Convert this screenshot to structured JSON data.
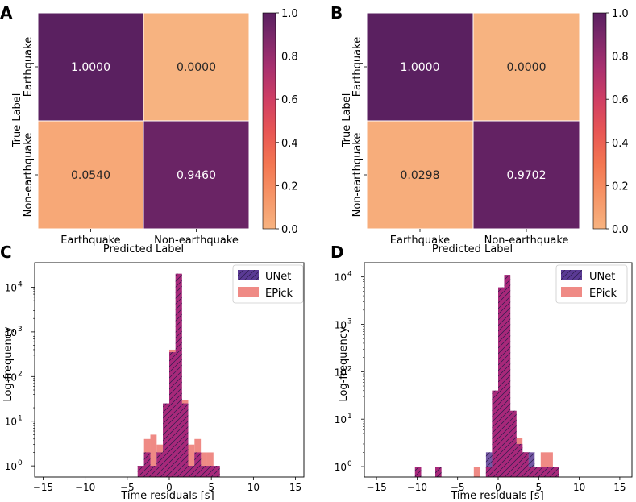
{
  "chart_data": [
    {
      "panel_label": "A",
      "type": "heatmap",
      "rows": [
        "Earthquake",
        "Non-earthquake"
      ],
      "cols": [
        "Earthquake",
        "Non-earthquake"
      ],
      "values": [
        [
          1.0,
          0.0
        ],
        [
          0.054,
          0.946
        ]
      ],
      "cell_labels": [
        [
          "1.0000",
          "0.0000"
        ],
        [
          "0.0540",
          "0.9460"
        ]
      ],
      "ylabel": "True Label",
      "xlabel": "Predicted Label",
      "colorbar": {
        "range": [
          0,
          1
        ],
        "ticks": [
          "0.0",
          "0.2",
          "0.4",
          "0.6",
          "0.8",
          "1.0"
        ]
      }
    },
    {
      "panel_label": "B",
      "type": "heatmap",
      "rows": [
        "Earthquake",
        "Non-earthquake"
      ],
      "cols": [
        "Earthquake",
        "Non-earthquake"
      ],
      "values": [
        [
          1.0,
          0.0
        ],
        [
          0.0298,
          0.9702
        ]
      ],
      "cell_labels": [
        [
          "1.0000",
          "0.0000"
        ],
        [
          "0.0298",
          "0.9702"
        ]
      ],
      "ylabel": "True Label",
      "xlabel": "Predicted Label",
      "colorbar": {
        "range": [
          0,
          1
        ],
        "ticks": [
          "0.0",
          "0.2",
          "0.4",
          "0.6",
          "0.8",
          "1.0"
        ]
      }
    },
    {
      "panel_label": "C",
      "type": "bar",
      "xlabel": "Time residuals [s]",
      "ylabel": "Log-frequency",
      "xlim": [
        -16,
        16
      ],
      "ylog_range": [
        -0.25,
        4.55
      ],
      "xticks": [
        -15,
        -10,
        -5,
        0,
        5,
        10,
        15
      ],
      "xtick_labels": [
        "−15",
        "−10",
        "−5",
        "0",
        "5",
        "10",
        "15"
      ],
      "yticks": [
        {
          "base": "10",
          "exp": "0",
          "v": 0
        },
        {
          "base": "10",
          "exp": "1",
          "v": 1
        },
        {
          "base": "10",
          "exp": "2",
          "v": 2
        },
        {
          "base": "10",
          "exp": "3",
          "v": 3
        },
        {
          "base": "10",
          "exp": "4",
          "v": 4
        }
      ],
      "bin_width": 0.75,
      "series": [
        {
          "name": "EPick",
          "color": "#ef8a85",
          "bins": [
            [
              -3.75,
              1
            ],
            [
              -3.0,
              4
            ],
            [
              -2.25,
              5
            ],
            [
              -1.5,
              3
            ],
            [
              -0.75,
              25
            ],
            [
              0,
              400
            ],
            [
              0.75,
              20000
            ],
            [
              1.5,
              30
            ],
            [
              2.25,
              3
            ],
            [
              3.0,
              4
            ],
            [
              3.75,
              2
            ],
            [
              4.5,
              2
            ],
            [
              5.25,
              1
            ]
          ]
        },
        {
          "name": "UNet",
          "color": "#5a3a94",
          "bins": [
            [
              -3.75,
              1
            ],
            [
              -3.0,
              2
            ],
            [
              -2.25,
              1
            ],
            [
              -1.5,
              2
            ],
            [
              -0.75,
              25
            ],
            [
              0,
              350
            ],
            [
              0.75,
              20000
            ],
            [
              1.5,
              25
            ],
            [
              2.25,
              1
            ],
            [
              3.0,
              2
            ],
            [
              3.75,
              1
            ],
            [
              4.5,
              1
            ],
            [
              5.25,
              1
            ]
          ]
        }
      ]
    },
    {
      "panel_label": "D",
      "type": "bar",
      "xlabel": "Time residuals [s]",
      "ylabel": "Log-frequency",
      "xlim": [
        -16.5,
        16.5
      ],
      "ylog_range": [
        -0.22,
        4.3
      ],
      "xticks": [
        -15,
        -10,
        -5,
        0,
        5,
        10,
        15
      ],
      "xtick_labels": [
        "−15",
        "−10",
        "−5",
        "0",
        "5",
        "10",
        "15"
      ],
      "yticks": [
        {
          "base": "10",
          "exp": "0",
          "v": 0
        },
        {
          "base": "10",
          "exp": "1",
          "v": 1
        },
        {
          "base": "10",
          "exp": "2",
          "v": 2
        },
        {
          "base": "10",
          "exp": "3",
          "v": 3
        },
        {
          "base": "10",
          "exp": "4",
          "v": 4
        }
      ],
      "bin_width": 0.75,
      "series": [
        {
          "name": "EPick",
          "color": "#ef8a85",
          "bins": [
            [
              -10.25,
              1
            ],
            [
              -7.75,
              1
            ],
            [
              -3.0,
              1
            ],
            [
              -1.5,
              1
            ],
            [
              -0.75,
              40
            ],
            [
              0,
              6000
            ],
            [
              0.75,
              11000
            ],
            [
              1.5,
              15
            ],
            [
              2.25,
              4
            ],
            [
              3.0,
              2
            ],
            [
              3.75,
              1
            ],
            [
              4.5,
              1
            ],
            [
              5.25,
              2
            ],
            [
              6.0,
              2
            ],
            [
              6.75,
              1
            ]
          ]
        },
        {
          "name": "UNet",
          "color": "#5a3a94",
          "bins": [
            [
              -10.25,
              1
            ],
            [
              -7.75,
              1
            ],
            [
              -1.5,
              2
            ],
            [
              -0.75,
              40
            ],
            [
              0,
              6000
            ],
            [
              0.75,
              11000
            ],
            [
              1.5,
              15
            ],
            [
              2.25,
              3
            ],
            [
              3.0,
              2
            ],
            [
              3.75,
              2
            ],
            [
              4.5,
              1
            ],
            [
              5.25,
              1
            ],
            [
              6.0,
              1
            ],
            [
              6.75,
              1
            ]
          ]
        }
      ]
    }
  ]
}
